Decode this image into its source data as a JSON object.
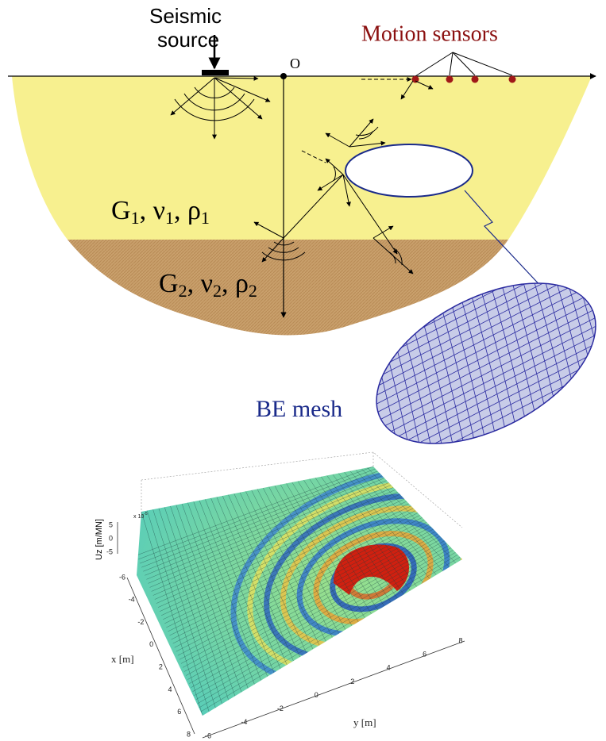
{
  "source_label": [
    "Seismic",
    "source"
  ],
  "sensors_label": "Motion sensors",
  "origin_label": "O",
  "layers": [
    {
      "label": [
        {
          "text": "G"
        },
        {
          "text": "1",
          "subscript": true
        },
        {
          "text": ", "
        },
        {
          "text": "ν"
        },
        {
          "text": "1",
          "subscript": true
        },
        {
          "text": ", "
        },
        {
          "text": "ρ"
        },
        {
          "text": "1",
          "subscript": true
        }
      ]
    },
    {
      "label": [
        {
          "text": "G"
        },
        {
          "text": "2",
          "subscript": true
        },
        {
          "text": ", "
        },
        {
          "text": "ν"
        },
        {
          "text": "2",
          "subscript": true
        },
        {
          "text": ", "
        },
        {
          "text": "ρ"
        },
        {
          "text": "2",
          "subscript": true
        }
      ]
    }
  ],
  "mesh_label": "BE mesh",
  "plot": {
    "z_label": "Uz [m/MN]",
    "x_label": "x [m]",
    "y_label": "y [m]",
    "z_scale": {
      "prefix": "x 10",
      "exponent": "-5"
    },
    "zticks": [
      5,
      0,
      -5
    ],
    "xticks": [
      -6,
      -4,
      -2,
      0,
      2,
      4,
      6,
      8
    ],
    "yticks": [
      -6,
      -4,
      -2,
      0,
      2,
      4,
      6,
      8
    ]
  }
}
